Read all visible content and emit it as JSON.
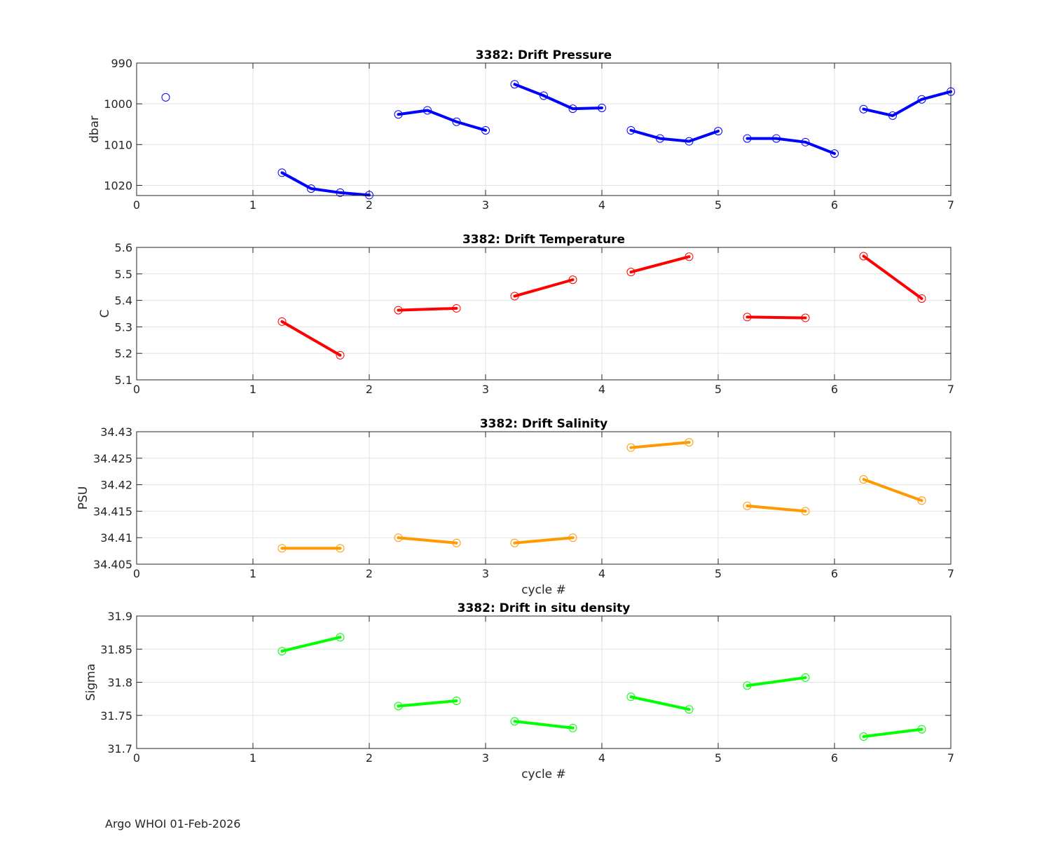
{
  "footer": "Argo WHOI 01-Feb-2026",
  "chart_data": [
    {
      "type": "line",
      "title": "3382: Drift Pressure",
      "xlabel": "",
      "ylabel": "dbar",
      "xlim": [
        0,
        7
      ],
      "ylim": [
        990,
        1022.5
      ],
      "y_reversed": true,
      "xticks": [
        "0",
        "1",
        "2",
        "3",
        "4",
        "5",
        "6",
        "7"
      ],
      "yticks": [
        "990",
        "1000",
        "1010",
        "1020"
      ],
      "grid": true,
      "color": "#0000ff",
      "marker": "circle",
      "segments": [
        {
          "x": [
            0.25
          ],
          "y": [
            998.4
          ]
        },
        {
          "x": [
            1.25,
            1.5,
            1.75,
            2.0
          ],
          "y": [
            1016.9,
            1020.8,
            1021.8,
            1022.4
          ]
        },
        {
          "x": [
            2.25,
            2.5,
            2.75,
            3.0
          ],
          "y": [
            1002.6,
            1001.6,
            1004.4,
            1006.5
          ]
        },
        {
          "x": [
            3.25,
            3.5,
            3.75,
            4.0
          ],
          "y": [
            995.2,
            998.0,
            1001.2,
            1001.0
          ]
        },
        {
          "x": [
            4.25,
            4.5,
            4.75,
            5.0
          ],
          "y": [
            1006.5,
            1008.5,
            1009.2,
            1006.7
          ]
        },
        {
          "x": [
            5.25,
            5.5,
            5.75,
            6.0
          ],
          "y": [
            1008.5,
            1008.5,
            1009.4,
            1012.2
          ]
        },
        {
          "x": [
            6.25,
            6.5,
            6.75,
            7.0
          ],
          "y": [
            1001.3,
            1002.9,
            998.9,
            997.0
          ]
        }
      ]
    },
    {
      "type": "line",
      "title": "3382: Drift Temperature",
      "xlabel": "",
      "ylabel": "C",
      "xlim": [
        0,
        7
      ],
      "ylim": [
        5.1,
        5.6
      ],
      "y_reversed": false,
      "xticks": [
        "0",
        "1",
        "2",
        "3",
        "4",
        "5",
        "6",
        "7"
      ],
      "yticks": [
        "5.1",
        "5.2",
        "5.3",
        "5.4",
        "5.5",
        "5.6"
      ],
      "grid": true,
      "color": "#ff0000",
      "marker": "circle",
      "segments": [
        {
          "x": [
            1.25,
            1.75
          ],
          "y": [
            5.32,
            5.193
          ]
        },
        {
          "x": [
            2.25,
            2.75
          ],
          "y": [
            5.363,
            5.37
          ]
        },
        {
          "x": [
            3.25,
            3.75
          ],
          "y": [
            5.416,
            5.478
          ]
        },
        {
          "x": [
            4.25,
            4.75
          ],
          "y": [
            5.507,
            5.565
          ]
        },
        {
          "x": [
            5.25,
            5.75
          ],
          "y": [
            5.337,
            5.334
          ]
        },
        {
          "x": [
            6.25,
            6.75
          ],
          "y": [
            5.567,
            5.407
          ]
        }
      ]
    },
    {
      "type": "line",
      "title": "3382: Drift Salinity",
      "xlabel": "cycle #",
      "ylabel": "PSU",
      "xlim": [
        0,
        7
      ],
      "ylim": [
        34.405,
        34.43
      ],
      "y_reversed": false,
      "xticks": [
        "0",
        "1",
        "2",
        "3",
        "4",
        "5",
        "6",
        "7"
      ],
      "yticks": [
        "34.405",
        "34.41",
        "34.415",
        "34.42",
        "34.425",
        "34.43"
      ],
      "grid": true,
      "color": "#ff9900",
      "marker": "circle",
      "segments": [
        {
          "x": [
            1.25,
            1.75
          ],
          "y": [
            34.408,
            34.408
          ]
        },
        {
          "x": [
            2.25,
            2.75
          ],
          "y": [
            34.41,
            34.409
          ]
        },
        {
          "x": [
            3.25,
            3.75
          ],
          "y": [
            34.409,
            34.41
          ]
        },
        {
          "x": [
            4.25,
            4.75
          ],
          "y": [
            34.427,
            34.428
          ]
        },
        {
          "x": [
            5.25,
            5.75
          ],
          "y": [
            34.416,
            34.415
          ]
        },
        {
          "x": [
            6.25,
            6.75
          ],
          "y": [
            34.421,
            34.417
          ]
        }
      ]
    },
    {
      "type": "line",
      "title": "3382: Drift in situ density",
      "xlabel": "cycle #",
      "ylabel": "Sigma",
      "xlim": [
        0,
        7
      ],
      "ylim": [
        31.7,
        31.9
      ],
      "y_reversed": false,
      "xticks": [
        "0",
        "1",
        "2",
        "3",
        "4",
        "5",
        "6",
        "7"
      ],
      "yticks": [
        "31.7",
        "31.75",
        "31.8",
        "31.85",
        "31.9"
      ],
      "grid": true,
      "color": "#00ff00",
      "marker": "circle",
      "segments": [
        {
          "x": [
            1.25,
            1.75
          ],
          "y": [
            31.847,
            31.868
          ]
        },
        {
          "x": [
            2.25,
            2.75
          ],
          "y": [
            31.764,
            31.772
          ]
        },
        {
          "x": [
            3.25,
            3.75
          ],
          "y": [
            31.741,
            31.731
          ]
        },
        {
          "x": [
            4.25,
            4.75
          ],
          "y": [
            31.778,
            31.759
          ]
        },
        {
          "x": [
            5.25,
            5.75
          ],
          "y": [
            31.795,
            31.807
          ]
        },
        {
          "x": [
            6.25,
            6.75
          ],
          "y": [
            31.718,
            31.729
          ]
        }
      ]
    }
  ]
}
